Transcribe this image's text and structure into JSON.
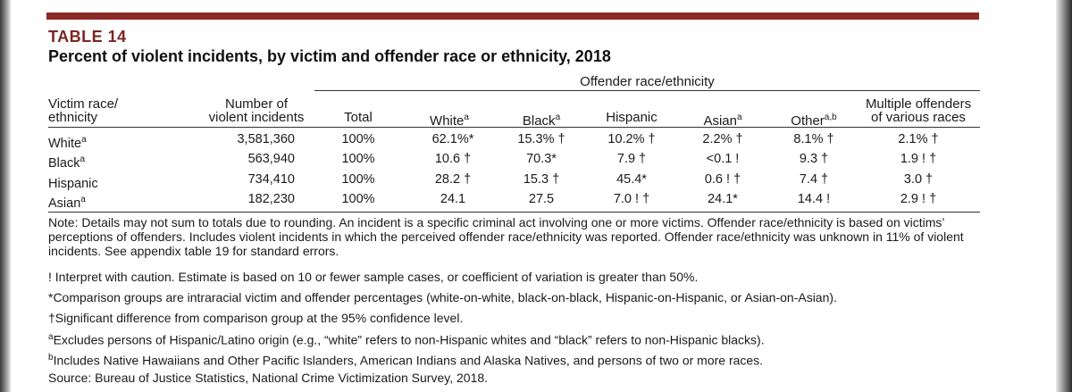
{
  "table": {
    "number": "TABLE 14",
    "title": "Percent of violent incidents, by victim and offender race or ethnicity, 2018",
    "group_header": "Offender race/ethnicity",
    "columns": {
      "victim_line1": "Victim race/",
      "victim_line2": "ethnicity",
      "count_line1": "Number of",
      "count_line2": "violent incidents",
      "total": "Total",
      "white": "White",
      "white_sup": "a",
      "black": "Black",
      "black_sup": "a",
      "hispanic": "Hispanic",
      "asian": "Asian",
      "asian_sup": "a",
      "other": "Other",
      "other_sup": "a,b",
      "multi_line1": "Multiple offenders",
      "multi_line2": "of various races"
    },
    "rows": [
      {
        "victim": "White",
        "sup": "a",
        "count": "3,581,360",
        "total": "100%",
        "white": "62.1%*",
        "black": "15.3% †",
        "hispanic": "10.2% †",
        "asian": "2.2% †",
        "other": "8.1% †",
        "multi": "2.1% †"
      },
      {
        "victim": "Black",
        "sup": "a",
        "count": "563,940",
        "total": "100%",
        "white": "10.6 †",
        "black": "70.3*",
        "hispanic": "7.9 †",
        "asian": "<0.1 !",
        "other": "9.3 †",
        "multi": "1.9 ! †"
      },
      {
        "victim": "Hispanic",
        "sup": "",
        "count": "734,410",
        "total": "100%",
        "white": "28.2 †",
        "black": "15.3 †",
        "hispanic": "45.4*",
        "asian": "0.6 ! †",
        "other": "7.4 †",
        "multi": "3.0 †"
      },
      {
        "victim": "Asian",
        "sup": "a",
        "count": "182,230",
        "total": "100%",
        "white": "24.1",
        "black": "27.5",
        "hispanic": "7.0 ! †",
        "asian": "24.1*",
        "other": "14.4 !",
        "multi": "2.9 ! †"
      }
    ]
  },
  "notes": {
    "note": "Note: Details may not sum to totals due to rounding. An incident is a specific criminal act involving one or more victims. Offender race/ethnicity is based on victims’ perceptions of offenders. Includes violent incidents in which the perceived offender race/ethnicity was reported. Offender race/ethnicity was unknown in 11% of violent incidents. See appendix table 19 for standard errors.",
    "caution": "! Interpret with caution. Estimate is based on 10 or fewer sample cases, or coefficient of variation is greater than 50%.",
    "comparison": "*Comparison groups are intraracial victim and offender percentages (white-on-white, black-on-black, Hispanic-on-Hispanic, or Asian-on-Asian).",
    "significant": "†Significant difference from comparison group at the 95% confidence level.",
    "footnote_a_mark": "a",
    "footnote_a": "Excludes persons of Hispanic/Latino origin (e.g., “white” refers to non-Hispanic whites and “black” refers to non-Hispanic blacks).",
    "footnote_b_mark": "b",
    "footnote_b": "Includes Native Hawaiians and Other Pacific Islanders, American Indians and Alaska Natives, and persons of two or more races.",
    "source": "Source: Bureau of Justice Statistics, National Crime Victimization Survey, 2018."
  },
  "colors": {
    "accent_bar": "#8c2a27",
    "table_number": "#7a2723"
  }
}
